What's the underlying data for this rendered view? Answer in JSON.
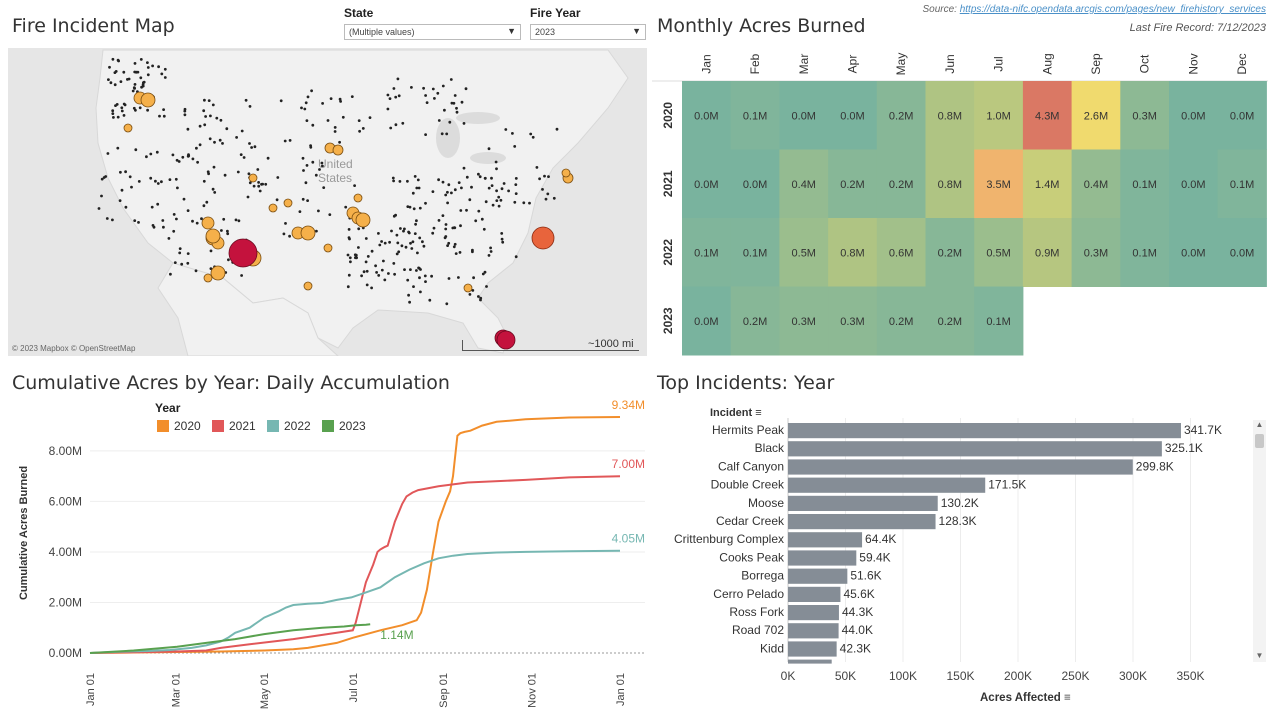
{
  "map": {
    "title": "Fire Incident Map",
    "attribution": "© 2023 Mapbox © OpenStreetMap",
    "scale_label": "~1000 mi",
    "country_label": [
      "United",
      "States"
    ]
  },
  "filters": {
    "state_label": "State",
    "state_value": "(Multiple values)",
    "year_label": "Fire Year",
    "year_value": "2023"
  },
  "source": {
    "prefix": "Source:",
    "url_text": "https://data-nifc.opendata.arcgis.com/pages/new_firehistory_services",
    "last_record": "Last Fire Record: 7/12/2023"
  },
  "heatmap": {
    "title": "Monthly Acres Burned"
  },
  "cumulative": {
    "title": "Cumulative Acres by Year: Daily Accumulation"
  },
  "top": {
    "title": "Top Incidents: Year",
    "header": "Incident",
    "xlabel": "Acres Affected"
  },
  "colors": {
    "2020": "#f28e2b",
    "2021": "#e15759",
    "2022": "#76b7b2",
    "2023": "#59a14f",
    "bar": "#858d96"
  },
  "chart_data": [
    {
      "type": "heatmap",
      "title": "Monthly Acres Burned",
      "columns": [
        "Jan",
        "Feb",
        "Mar",
        "Apr",
        "May",
        "Jun",
        "Jul",
        "Aug",
        "Sep",
        "Oct",
        "Nov",
        "Dec"
      ],
      "rows": [
        "2020",
        "2021",
        "2022",
        "2023"
      ],
      "values": [
        [
          0.0,
          0.1,
          0.0,
          0.0,
          0.2,
          0.8,
          1.0,
          4.3,
          2.6,
          0.3,
          0.0,
          0.0
        ],
        [
          0.0,
          0.0,
          0.4,
          0.2,
          0.2,
          0.8,
          3.5,
          1.4,
          0.4,
          0.1,
          0.0,
          0.1
        ],
        [
          0.1,
          0.1,
          0.5,
          0.8,
          0.6,
          0.2,
          0.5,
          0.9,
          0.3,
          0.1,
          0.0,
          0.0
        ],
        [
          0.0,
          0.2,
          0.3,
          0.3,
          0.2,
          0.2,
          0.1,
          null,
          null,
          null,
          null,
          null
        ]
      ],
      "labels": [
        [
          "0.0M",
          "0.1M",
          "0.0M",
          "0.0M",
          "0.2M",
          "0.8M",
          "1.0M",
          "4.3M",
          "2.6M",
          "0.3M",
          "0.0M",
          "0.0M"
        ],
        [
          "0.0M",
          "0.0M",
          "0.4M",
          "0.2M",
          "0.2M",
          "0.8M",
          "3.5M",
          "1.4M",
          "0.4M",
          "0.1M",
          "0.0M",
          "0.1M"
        ],
        [
          "0.1M",
          "0.1M",
          "0.5M",
          "0.8M",
          "0.6M",
          "0.2M",
          "0.5M",
          "0.9M",
          "0.3M",
          "0.1M",
          "0.0M",
          "0.0M"
        ],
        [
          "0.0M",
          "0.2M",
          "0.3M",
          "0.3M",
          "0.2M",
          "0.2M",
          "0.1M",
          "",
          "",
          "",
          "",
          ""
        ]
      ]
    },
    {
      "type": "line",
      "title": "Cumulative Acres by Year: Daily Accumulation",
      "ylabel": "Cumulative Acres Burned",
      "legend_title": "Year",
      "yticks": [
        "0.00M",
        "2.00M",
        "4.00M",
        "6.00M",
        "8.00M"
      ],
      "ytick_values": [
        0,
        2,
        4,
        6,
        8
      ],
      "ylim": [
        0,
        9.5
      ],
      "xticks": [
        "Jan 01",
        "Mar 01",
        "May 01",
        "Jul 01",
        "Sep 01",
        "Nov 01",
        "Jan 01"
      ],
      "xtick_days": [
        0,
        59,
        120,
        181,
        243,
        304,
        365
      ],
      "xlim": [
        0,
        365
      ],
      "series": [
        {
          "name": "2020",
          "end_label": "9.34M",
          "x": [
            0,
            30,
            60,
            90,
            120,
            140,
            150,
            170,
            181,
            200,
            215,
            225,
            228,
            232,
            236,
            240,
            245,
            248,
            250,
            253,
            255,
            258,
            262,
            270,
            280,
            300,
            330,
            365
          ],
          "y": [
            0,
            0.02,
            0.04,
            0.06,
            0.1,
            0.15,
            0.2,
            0.4,
            0.6,
            0.9,
            1.1,
            1.3,
            1.6,
            2.5,
            3.9,
            5.2,
            6.0,
            6.4,
            7.0,
            8.6,
            8.7,
            8.75,
            8.8,
            9.0,
            9.15,
            9.25,
            9.32,
            9.34
          ]
        },
        {
          "name": "2021",
          "end_label": "7.00M",
          "x": [
            0,
            30,
            60,
            80,
            90,
            110,
            140,
            170,
            181,
            183,
            190,
            195,
            198,
            200,
            203,
            205,
            210,
            215,
            218,
            222,
            226,
            240,
            260,
            300,
            330,
            365
          ],
          "y": [
            0,
            0.03,
            0.06,
            0.1,
            0.2,
            0.35,
            0.55,
            0.8,
            0.9,
            1.2,
            2.8,
            3.5,
            4.0,
            4.1,
            4.2,
            4.25,
            5.2,
            5.9,
            6.2,
            6.35,
            6.45,
            6.6,
            6.75,
            6.85,
            6.95,
            7.0
          ]
        },
        {
          "name": "2022",
          "end_label": "4.05M",
          "x": [
            0,
            20,
            40,
            55,
            70,
            80,
            90,
            95,
            100,
            110,
            120,
            130,
            135,
            140,
            150,
            160,
            170,
            180,
            190,
            200,
            210,
            220,
            230,
            240,
            250,
            260,
            280,
            300,
            330,
            365
          ],
          "y": [
            0,
            0.05,
            0.08,
            0.12,
            0.2,
            0.3,
            0.45,
            0.6,
            0.8,
            1.0,
            1.4,
            1.65,
            1.8,
            1.9,
            1.95,
            1.98,
            2.1,
            2.2,
            2.4,
            2.6,
            3.0,
            3.3,
            3.55,
            3.75,
            3.85,
            3.92,
            3.98,
            4.0,
            4.03,
            4.05
          ]
        },
        {
          "name": "2023",
          "end_label": "1.14M",
          "x": [
            0,
            30,
            60,
            80,
            100,
            120,
            140,
            160,
            175,
            183,
            190,
            193
          ],
          "y": [
            0,
            0.1,
            0.25,
            0.4,
            0.55,
            0.75,
            0.9,
            1.0,
            1.05,
            1.1,
            1.12,
            1.14
          ]
        }
      ]
    },
    {
      "type": "bar",
      "orientation": "horizontal",
      "title": "Top Incidents: Year",
      "xlabel": "Acres Affected",
      "ylabel": "Incident",
      "categories": [
        "Hermits Peak",
        "Black",
        "Calf Canyon",
        "Double Creek",
        "Moose",
        "Cedar Creek",
        "Crittenburg Complex",
        "Cooks Peak",
        "Borrega",
        "Cerro Pelado",
        "Ross Fork",
        "Road 702",
        "Kidd"
      ],
      "values": [
        341700,
        325100,
        299800,
        171500,
        130200,
        128300,
        64400,
        59400,
        51600,
        45600,
        44300,
        44000,
        42300
      ],
      "labels": [
        "341.7K",
        "325.1K",
        "299.8K",
        "171.5K",
        "130.2K",
        "128.3K",
        "64.4K",
        "59.4K",
        "51.6K",
        "45.6K",
        "44.3K",
        "44.0K",
        "42.3K"
      ],
      "xticks": [
        "0K",
        "50K",
        "100K",
        "150K",
        "200K",
        "250K",
        "300K",
        "350K"
      ],
      "xtick_values": [
        0,
        50000,
        100000,
        150000,
        200000,
        250000,
        300000,
        350000
      ],
      "xlim": [
        0,
        400000
      ]
    }
  ]
}
